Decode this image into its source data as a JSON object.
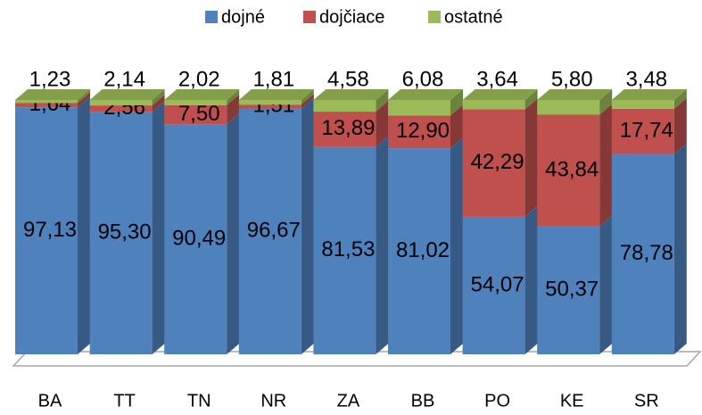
{
  "chart_data": {
    "type": "bar3d_stacked",
    "categories": [
      "BA",
      "TT",
      "TN",
      "NR",
      "ZA",
      "BB",
      "PO",
      "KE",
      "SR"
    ],
    "series": [
      {
        "name": "dojné",
        "color": "#4f81bd",
        "values": [
          97.13,
          95.3,
          90.49,
          96.67,
          81.53,
          81.02,
          54.07,
          50.37,
          78.78
        ],
        "value_labels": [
          "97,13",
          "95,30",
          "90,49",
          "96,67",
          "81,53",
          "81,02",
          "54,07",
          "50,37",
          "78,78"
        ]
      },
      {
        "name": "dojčiace",
        "color": "#c0504d",
        "values": [
          1.64,
          2.56,
          7.5,
          1.51,
          13.89,
          12.9,
          42.29,
          43.84,
          17.74
        ],
        "value_labels": [
          "1,64",
          "2,56",
          "7,50",
          "1,51",
          "13,89",
          "12,90",
          "42,29",
          "43,84",
          "17,74"
        ]
      },
      {
        "name": "ostatné",
        "color": "#9bbb59",
        "values": [
          1.23,
          2.14,
          2.02,
          1.81,
          4.58,
          6.08,
          3.64,
          5.8,
          3.48
        ],
        "value_labels": [
          "1,23",
          "2,14",
          "2,02",
          "1,81",
          "4,58",
          "6,08",
          "3,64",
          "5,80",
          "3,48"
        ]
      }
    ],
    "legend": "top"
  }
}
